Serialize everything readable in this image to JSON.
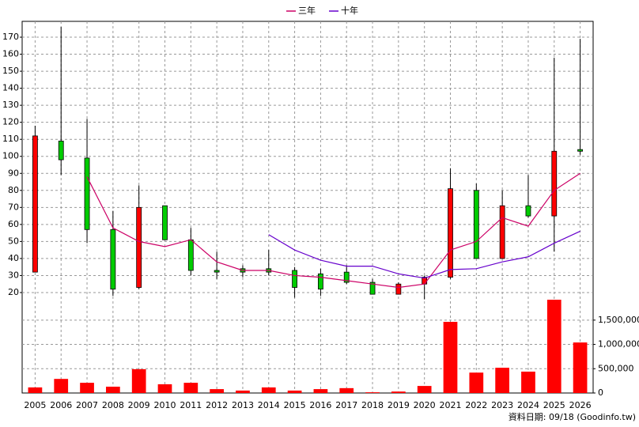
{
  "chart_data": {
    "type": "candlestick",
    "categories": [
      "2005",
      "2006",
      "2007",
      "2008",
      "2009",
      "2010",
      "2011",
      "2012",
      "2013",
      "2014",
      "2015",
      "2016",
      "2017",
      "2018",
      "2019",
      "2020",
      "2021",
      "2022",
      "2023",
      "2024",
      "2025",
      "2026"
    ],
    "open": [
      32,
      109,
      99,
      57,
      23,
      71,
      51,
      33,
      34,
      34,
      33,
      31,
      32,
      26,
      19,
      25,
      29,
      80,
      40,
      71,
      65,
      104
    ],
    "high": [
      118,
      176,
      122,
      68,
      83,
      71,
      58,
      44,
      36,
      45,
      35,
      34,
      36,
      28,
      26,
      30,
      93,
      84,
      80,
      89,
      158,
      169
    ],
    "low": [
      32,
      89,
      49,
      18,
      22,
      51,
      30,
      28,
      29,
      30,
      17,
      18,
      25,
      19,
      19,
      16,
      28,
      40,
      40,
      64,
      44,
      101
    ],
    "close": [
      112,
      98,
      57,
      22,
      70,
      51,
      33,
      32,
      32,
      32,
      23,
      22,
      26,
      19,
      25,
      29,
      81,
      40,
      71,
      65,
      103,
      103
    ],
    "up_color": "#ff0000",
    "down_color": "#00cc00",
    "series": [
      {
        "name": "三年",
        "color": "#cc0066",
        "values": [
          null,
          null,
          88,
          58,
          50,
          47,
          51,
          38,
          33,
          33,
          30,
          29,
          27,
          25,
          23,
          25,
          45,
          50,
          64,
          59,
          80,
          90
        ]
      },
      {
        "name": "十年",
        "color": "#6600cc",
        "values": [
          null,
          null,
          null,
          null,
          null,
          null,
          null,
          null,
          null,
          54,
          45,
          39,
          35.5,
          35.5,
          31,
          28.5,
          33.5,
          34,
          38,
          41,
          49,
          56
        ]
      }
    ],
    "volume": {
      "axis": "y2",
      "color": "#ff0000",
      "values": [
        115000,
        290000,
        210000,
        130000,
        490000,
        180000,
        210000,
        80000,
        50000,
        115000,
        50000,
        80000,
        100000,
        15000,
        30000,
        145000,
        1465000,
        420000,
        520000,
        440000,
        1920000,
        1040000
      ]
    },
    "ylim": [
      -39,
      179.3
    ],
    "yticks": [
      20,
      30,
      40,
      50,
      60,
      70,
      80,
      90,
      100,
      110,
      120,
      130,
      140,
      150,
      160,
      170
    ],
    "y2lim": [
      0,
      7650000
    ],
    "y2ticks": [
      0,
      {
        "value": 500000,
        "label": "500,000"
      },
      {
        "value": 1000000,
        "label": "1,000,000"
      },
      {
        "value": 1500000,
        "label": "1,500,000"
      }
    ],
    "grid": true,
    "footer": "資料日期: 09/18 (Goodinfo.tw)"
  }
}
